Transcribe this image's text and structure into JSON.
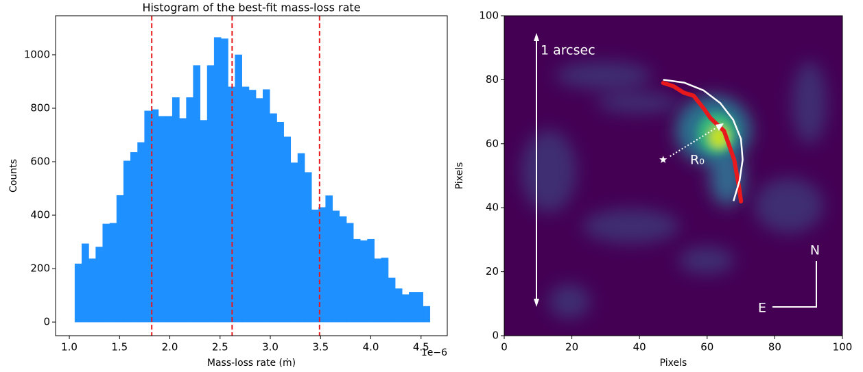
{
  "chart_data": [
    {
      "type": "histogram",
      "title": "Histogram of the best-fit mass-loss rate",
      "xlabel": "Mass-loss rate (ṁ)",
      "ylabel": "Counts",
      "x_offset_label": "1e−6",
      "bins": [
        1.055,
        1.124,
        1.194,
        1.263,
        1.332,
        1.402,
        1.471,
        1.54,
        1.609,
        1.679,
        1.748,
        1.817,
        1.887,
        1.956,
        2.025,
        2.095,
        2.164,
        2.233,
        2.302,
        2.372,
        2.441,
        2.51,
        2.58,
        2.649,
        2.718,
        2.788,
        2.857,
        2.926,
        2.995,
        3.065,
        3.134,
        3.203,
        3.273,
        3.342,
        3.411,
        3.481,
        3.55,
        3.619,
        3.688,
        3.758,
        3.827,
        3.896,
        3.966,
        4.035,
        4.104,
        4.174,
        4.243,
        4.312,
        4.381,
        4.451,
        4.52,
        4.589
      ],
      "counts": [
        218,
        293,
        237,
        281,
        367,
        370,
        474,
        603,
        635,
        672,
        790,
        795,
        770,
        770,
        840,
        762,
        840,
        960,
        755,
        960,
        1065,
        1060,
        880,
        1000,
        880,
        868,
        837,
        870,
        780,
        748,
        693,
        596,
        631,
        560,
        420,
        429,
        473,
        416,
        395,
        370,
        310,
        305,
        310,
        237,
        240,
        165,
        125,
        103,
        112,
        112,
        59
      ],
      "color": "#1e90ff",
      "vlines": {
        "values": [
          1.82,
          2.62,
          3.49
        ],
        "color": "#e8191c"
      },
      "xlim": [
        0.863,
        4.761
      ],
      "ylim": [
        -51,
        1146
      ],
      "xticks": [
        {
          "value": 1.0,
          "label": "1.0"
        },
        1.5,
        {
          "value": 2.0,
          "label": "2.0"
        },
        2.5,
        {
          "value": 3.0,
          "label": "3.0"
        },
        3.5,
        {
          "value": 4.0,
          "label": "4.0"
        },
        4.5
      ],
      "yticks": [
        0,
        200,
        400,
        600,
        800,
        1000
      ]
    },
    {
      "type": "image",
      "xlabel": "Pixels",
      "ylabel": "Pixels",
      "xlim": [
        0,
        100
      ],
      "ylim": [
        0,
        100
      ],
      "xticks": [
        0,
        20,
        40,
        60,
        80,
        100
      ],
      "yticks": [
        0,
        20,
        40,
        60,
        80,
        100
      ],
      "arc": {
        "color": "#ffffff",
        "x": [
          47,
          53.2,
          58.9,
          63.9,
          67.7,
          70.0,
          70.5,
          69.6,
          67.8
        ],
        "y": [
          80,
          79.1,
          76.7,
          72.7,
          67.5,
          61.5,
          55,
          48.5,
          42.1
        ]
      },
      "trace": {
        "color": "#e8191c",
        "x": [
          47,
          50,
          53,
          56,
          59,
          61,
          63,
          65,
          66,
          67,
          68,
          68.5,
          69,
          69.5,
          70
        ],
        "y": [
          79,
          78,
          76,
          75,
          71,
          68,
          66,
          64,
          61,
          58,
          55,
          52,
          49,
          46,
          42
        ]
      },
      "star": {
        "x": 47,
        "y": 55
      },
      "annotations": {
        "scale": "1 arcsec",
        "radius": "R₀",
        "north": "N",
        "east": "E"
      }
    }
  ]
}
